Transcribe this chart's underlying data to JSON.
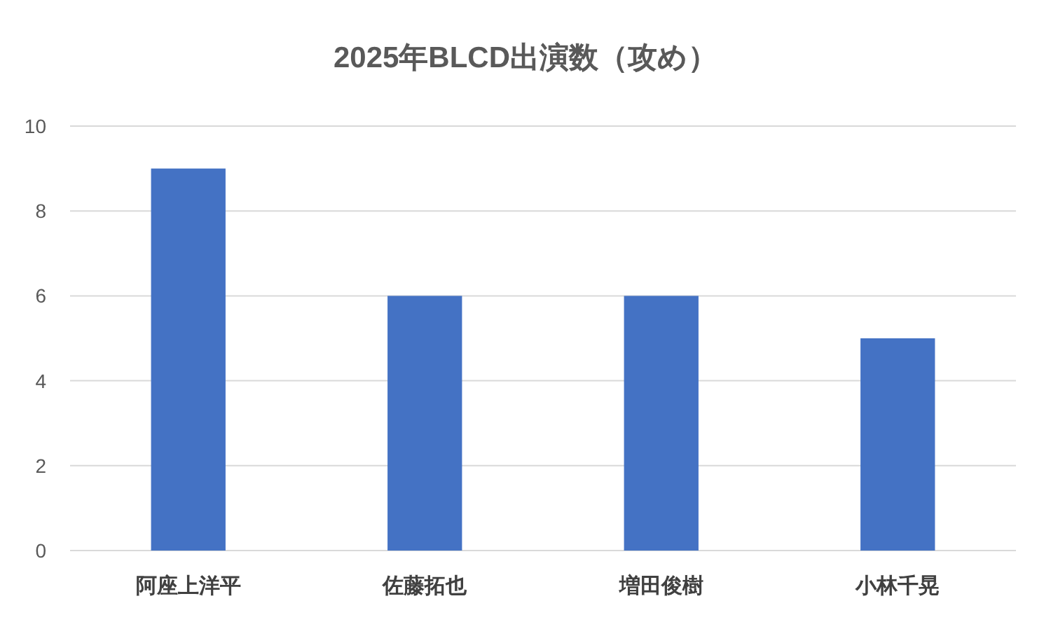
{
  "chart_data": {
    "type": "bar",
    "title": "2025年BLCD出演数（攻め）",
    "categories": [
      "阿座上洋平",
      "佐藤拓也",
      "増田俊樹",
      "小林千晃"
    ],
    "values": [
      9,
      6,
      6,
      5
    ],
    "color": "#4472c4",
    "ylim": [
      0,
      10
    ],
    "yticks": [
      0,
      2,
      4,
      6,
      8,
      10
    ],
    "grid": "y"
  }
}
